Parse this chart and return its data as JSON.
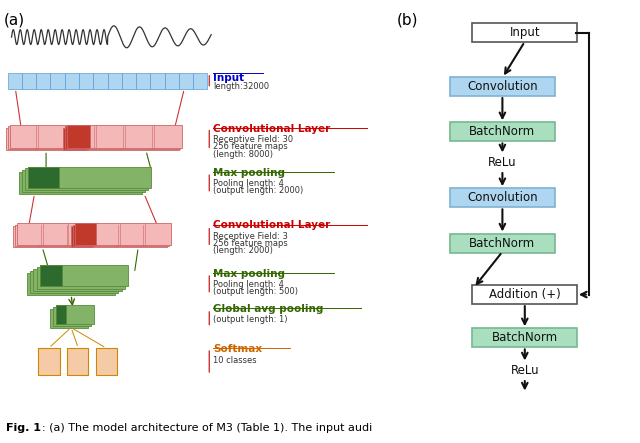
{
  "fig_width": 6.4,
  "fig_height": 4.43,
  "bg_color": "#ffffff",
  "panel_a_label": "(a)",
  "panel_b_label": "(b)",
  "waveform_color": "#333333",
  "input_color": "#aed6f1",
  "input_label": "Input",
  "input_sublabel": "length:32000",
  "input_label_color": "#0000cc",
  "conv1_face": "#f4b8b8",
  "conv1_edge": "#cc6666",
  "conv1_highlight": "#c0392b",
  "conv1_label": "Convolutional Layer",
  "conv1_sub1": "Receptive Field: 30",
  "conv1_sub2": "256 feature maps",
  "conv1_sub3": "(length: 8000)",
  "conv1_label_color": "#cc0000",
  "pool1_face": "#82b366",
  "pool1_edge": "#5a8a3a",
  "pool1_highlight": "#2d6a2d",
  "pool1_label": "Max pooling",
  "pool1_sub1": "Pooling length: 4",
  "pool1_sub2": "(output length: 2000)",
  "pool1_label_color": "#336600",
  "conv2_face": "#f4b8b8",
  "conv2_edge": "#cc6666",
  "conv2_highlight": "#c0392b",
  "conv2_label": "Convolutional Layer",
  "conv2_sub1": "Receptive Field: 3",
  "conv2_sub2": "256 feature maps",
  "conv2_sub3": "(length: 2000)",
  "conv2_label_color": "#cc0000",
  "pool2_face": "#82b366",
  "pool2_edge": "#5a8a3a",
  "pool2_highlight": "#2d6a2d",
  "pool2_label": "Max pooling",
  "pool2_sub1": "Pooling length: 4",
  "pool2_sub2": "(output length: 500)",
  "pool2_label_color": "#336600",
  "global_face": "#82b366",
  "global_edge": "#5a8a3a",
  "global_highlight": "#2d6a2d",
  "global_label": "Global avg pooling",
  "global_sub1": "(output length: 1)",
  "global_label_color": "#336600",
  "softmax_face": "#f5cba7",
  "softmax_edge": "#cc8800",
  "softmax_label": "Softmax",
  "softmax_sub1": "10 classes",
  "softmax_label_color": "#cc6600",
  "b_input_label": "Input",
  "b_conv_label": "Convolution",
  "b_bn_label": "BatchNorm",
  "b_relu_label": "ReLu",
  "b_add_label": "Addition (+)",
  "b_conv_color": "#aed6f1",
  "b_conv_edge": "#7fb3d3",
  "b_bn_color": "#a9dfbf",
  "b_bn_edge": "#76b891",
  "b_input_color": "#ffffff",
  "b_input_edge": "#555555",
  "b_add_color": "#ffffff",
  "b_add_edge": "#555555",
  "arrow_color": "#111111",
  "caption_bold": "Fig. 1",
  "caption_rest": ": (a) The model architecture of M3 (Table 1). The input audi"
}
